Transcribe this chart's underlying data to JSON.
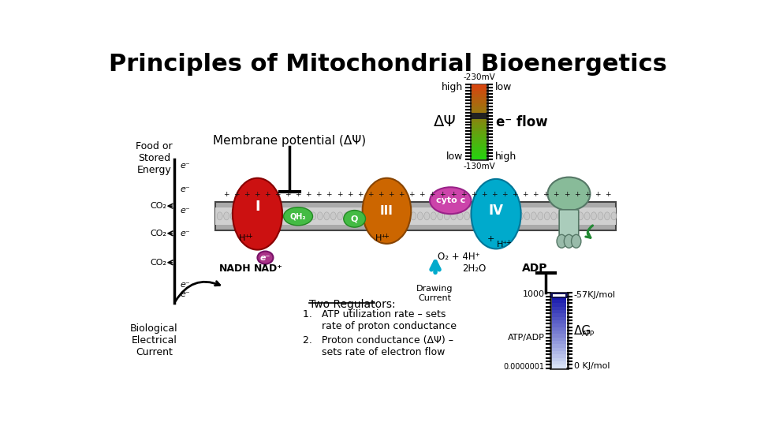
{
  "title": "Principles of Mitochondrial Bioenergetics",
  "title_fontsize": 22,
  "bg_color": "#ffffff",
  "membrane_potential_label": "Membrane potential (ΔΨ)",
  "delta_psi_label": "ΔΨ",
  "e_flow_label": "e⁻ flow",
  "two_regulators_label": "Two Regulators:",
  "reg1": "1.   ATP utilization rate – sets\n      rate of proton conductance",
  "reg2": "2.   Proton conductance (ΔΨ) –\n      sets rate of electron flow",
  "nadh_label": "NADH",
  "nad_label": "NAD⁺",
  "hplus_label": "H⁺",
  "co2_labels": [
    "CO₂",
    "CO₂",
    "CO₂"
  ],
  "o2_label": "O₂ + 4H⁺",
  "h2o_label": "2H₂O",
  "drawing_current_label": "Drawing\nCurrent",
  "adp_label": "ADP",
  "atp_adp_label": "ATP/ADP",
  "val_1000": "1000",
  "val_small": "0.0000001",
  "val_57": "-57KJ/mol",
  "val_0": "0 KJ/mol",
  "high_label": "high",
  "low_label": "low",
  "mv_230": "-230mV",
  "mv_130": "-130mV",
  "bio_elec_label": "Biological\nElectrical\nCurrent",
  "cyto_c_label": "cyto c",
  "qh2_label": "QH₂",
  "q_label": "Q"
}
